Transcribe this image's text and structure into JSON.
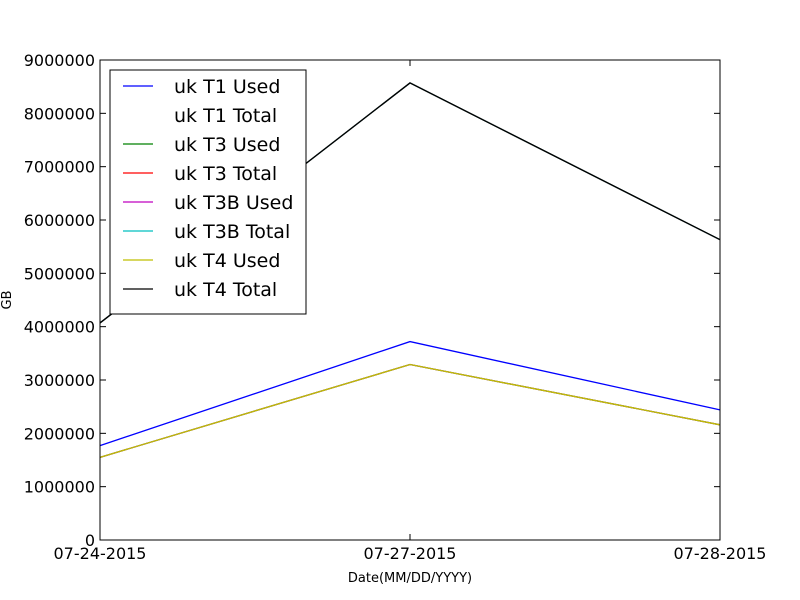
{
  "chart_data": {
    "type": "line",
    "title": "",
    "xlabel": "Date(MM/DD/YYYY)",
    "ylabel": "GB",
    "x": [
      "07-24-2015",
      "07-27-2015",
      "07-28-2015"
    ],
    "ylim": [
      0,
      9000000
    ],
    "yticks": [
      0,
      1000000,
      2000000,
      3000000,
      4000000,
      5000000,
      6000000,
      7000000,
      8000000,
      9000000
    ],
    "ytick_labels": [
      "0",
      "1000000",
      "2000000",
      "3000000",
      "4000000",
      "5000000",
      "6000000",
      "7000000",
      "8000000",
      "9000000"
    ],
    "grid": false,
    "legend_position": "top-left",
    "series": [
      {
        "name": "uk T1 Used",
        "color": "#0000ff",
        "values": [
          1770000,
          3720000,
          2440000
        ]
      },
      {
        "name": "uk T1 Total",
        "color": "#ffffff",
        "values": [
          4070000,
          8570000,
          5630000
        ]
      },
      {
        "name": "uk T3 Used",
        "color": "#008000",
        "values": [
          1550000,
          3290000,
          2160000
        ]
      },
      {
        "name": "uk T3 Total",
        "color": "#ff0000",
        "values": [
          4070000,
          8570000,
          5630000
        ]
      },
      {
        "name": "uk T3B Used",
        "color": "#bf00bf",
        "values": [
          1550000,
          3290000,
          2160000
        ]
      },
      {
        "name": "uk T3B Total",
        "color": "#00bfbf",
        "values": [
          4070000,
          8570000,
          5630000
        ]
      },
      {
        "name": "uk T4 Used",
        "color": "#bfbf00",
        "values": [
          1550000,
          3290000,
          2160000
        ]
      },
      {
        "name": "uk T4 Total",
        "color": "#000000",
        "values": [
          4070000,
          8570000,
          5630000
        ]
      }
    ]
  }
}
